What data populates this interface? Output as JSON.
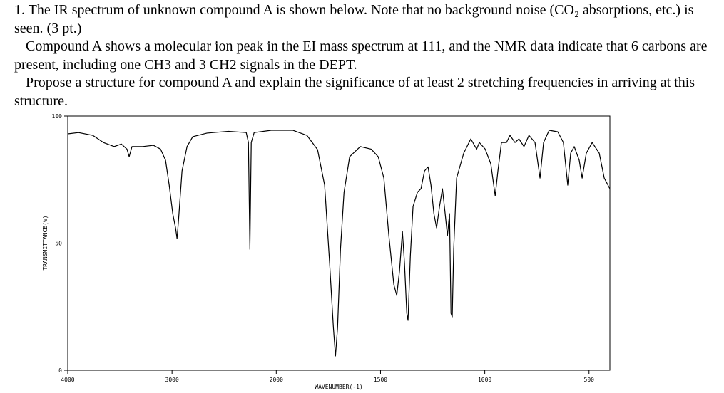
{
  "paragraphs": [
    "1.  The  IR spectrum of unknown compound A is shown below.  Note that no background noise (CO₂ absorptions, etc.) is seen.  (3 pt.)",
    "Compound A shows a molecular ion peak in the EI mass spectrum at 111, and the NMR data indicate that 6 carbons are present, including one CH3 and 3 CH2 signals in the DEPT.",
    "Propose a structure for compound A and explain the significance of at least 2 stretching frequencies in arriving at this structure."
  ],
  "chart_data": {
    "type": "line",
    "xlabel": "WAVENUMBER(-1)",
    "ylabel": "TRANSMITTANCE(%)",
    "color": "#000000",
    "xlim": [
      4000,
      400
    ],
    "x_scale_break": 2000,
    "xticks": [
      4000,
      3000,
      2000,
      1500,
      1000,
      500
    ],
    "ylim": [
      0,
      100
    ],
    "yticks": [
      0,
      50,
      100
    ],
    "x": [
      4000,
      3897,
      3760,
      3658,
      3555,
      3486,
      3432,
      3411,
      3384,
      3281,
      3178,
      3110,
      3062,
      3027,
      2993,
      2966,
      2952,
      2938,
      2904,
      2856,
      2801,
      2664,
      2459,
      2288,
      2267,
      2253,
      2240,
      2212,
      2048,
      1921,
      1853,
      1802,
      1768,
      1744,
      1726,
      1716,
      1706,
      1692,
      1675,
      1648,
      1597,
      1545,
      1511,
      1484,
      1460,
      1436,
      1422,
      1409,
      1395,
      1385,
      1374,
      1368,
      1357,
      1344,
      1323,
      1306,
      1289,
      1272,
      1258,
      1244,
      1231,
      1217,
      1203,
      1190,
      1179,
      1169,
      1162,
      1156,
      1149,
      1135,
      1101,
      1067,
      1039,
      1026,
      998,
      971,
      950,
      937,
      920,
      896,
      879,
      855,
      836,
      812,
      788,
      759,
      735,
      718,
      691,
      650,
      623,
      602,
      588,
      571,
      547,
      533,
      513,
      485,
      451,
      427,
      400
    ],
    "values": [
      93,
      93.5,
      92.4,
      89.6,
      88,
      89,
      87,
      84,
      88,
      88,
      88.5,
      87,
      82.6,
      72.8,
      61.6,
      56,
      51.8,
      58.8,
      78.4,
      88,
      91.9,
      93.3,
      94,
      93.5,
      89.6,
      47.6,
      89.6,
      93.5,
      94.4,
      94.4,
      92.4,
      86.8,
      72.8,
      42,
      16.8,
      5.6,
      16.8,
      47.6,
      70,
      84,
      88,
      87,
      84,
      75.6,
      53,
      33.6,
      29.4,
      39,
      54.6,
      42,
      22.4,
      19.6,
      44.8,
      64.4,
      70,
      71.4,
      78.4,
      80,
      72.8,
      61.6,
      56,
      64.4,
      71.4,
      61.6,
      53,
      61.6,
      22.4,
      21,
      47.6,
      75.6,
      85.4,
      91,
      87,
      89.6,
      87,
      81.2,
      68.6,
      78.4,
      89.6,
      89.6,
      92.4,
      89.6,
      91,
      88,
      92.4,
      89.6,
      75.6,
      89.6,
      94.4,
      93.8,
      89.6,
      72.8,
      85.4,
      88,
      82.6,
      75.6,
      85.4,
      89.6,
      85.4,
      75.6,
      71.4
    ]
  }
}
